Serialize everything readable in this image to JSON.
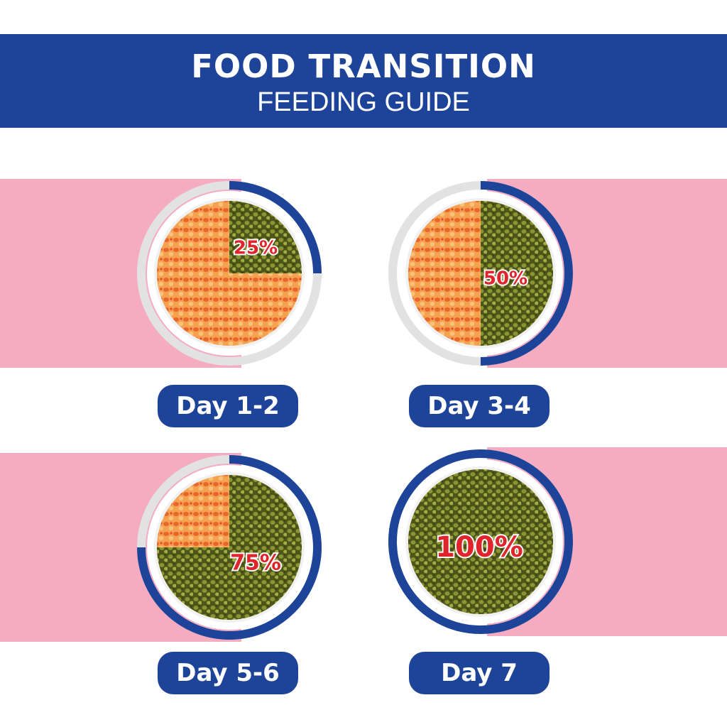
{
  "header": {
    "title": "FOOD TRANSITION",
    "subtitle": "FEEDING GUIDE"
  },
  "colors": {
    "brand_blue": "#1e449a",
    "band_pink": "#f5abc0",
    "ring_gray": "#e2e2e2",
    "old_food_orange": "#f0873c",
    "new_food_green": "#6f7a24",
    "label_red": "#e0242b"
  },
  "stages": [
    {
      "day_label": "Day 1-2",
      "new_food_fraction": 0.25,
      "percent_label": "25%"
    },
    {
      "day_label": "Day 3-4",
      "new_food_fraction": 0.5,
      "percent_label": "50%"
    },
    {
      "day_label": "Day 5-6",
      "new_food_fraction": 0.75,
      "percent_label": "75%"
    },
    {
      "day_label": "Day 7",
      "new_food_fraction": 1.0,
      "percent_label": "100%"
    }
  ]
}
